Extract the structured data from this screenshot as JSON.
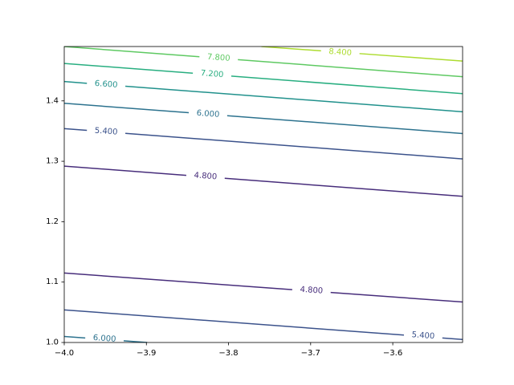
{
  "chart_data": {
    "type": "contour",
    "title": "",
    "xlabel": "",
    "ylabel": "",
    "xlim": [
      -4.0,
      -3.515
    ],
    "ylim": [
      1.0,
      1.49
    ],
    "x_ticks": [
      {
        "value": -4.0,
        "label": "−4.0"
      },
      {
        "value": -3.9,
        "label": "−3.9"
      },
      {
        "value": -3.8,
        "label": "−3.8"
      },
      {
        "value": -3.7,
        "label": "−3.7"
      },
      {
        "value": -3.6,
        "label": "−3.6"
      }
    ],
    "y_ticks": [
      {
        "value": 1.0,
        "label": "1.0"
      },
      {
        "value": 1.1,
        "label": "1.1"
      },
      {
        "value": 1.2,
        "label": "1.2"
      },
      {
        "value": 1.3,
        "label": "1.3"
      },
      {
        "value": 1.4,
        "label": "1.4"
      }
    ],
    "grid": false,
    "levels": [
      {
        "level": 4.8,
        "label": "4.800",
        "color": "#472d7b",
        "lines": [
          {
            "points": [
              [
                -4.0,
                1.292
              ],
              [
                -3.515,
                1.242
              ]
            ],
            "label_at": [
              -3.828,
              1.275
            ]
          },
          {
            "points": [
              [
                -4.0,
                1.115
              ],
              [
                -3.515,
                1.067
              ]
            ],
            "label_at": [
              -3.699,
              1.086
            ]
          }
        ]
      },
      {
        "level": 5.4,
        "label": "5.400",
        "color": "#3b528b",
        "lines": [
          {
            "points": [
              [
                -4.0,
                1.354
              ],
              [
                -3.515,
                1.304
              ]
            ],
            "label_at": [
              -3.949,
              1.349
            ]
          },
          {
            "points": [
              [
                -4.0,
                1.054
              ],
              [
                -3.515,
                1.005
              ]
            ],
            "label_at": [
              -3.563,
              1.011
            ]
          }
        ]
      },
      {
        "level": 6.0,
        "label": "6.000",
        "color": "#2c728e",
        "lines": [
          {
            "points": [
              [
                -4.0,
                1.396
              ],
              [
                -3.515,
                1.346
              ]
            ],
            "label_at": [
              -3.825,
              1.378
            ]
          },
          {
            "points": [
              [
                -4.0,
                1.01
              ],
              [
                -3.899,
                1.0
              ]
            ],
            "label_at": [
              -3.951,
              1.006
            ]
          }
        ]
      },
      {
        "level": 6.6,
        "label": "6.600",
        "color": "#21918c",
        "lines": [
          {
            "points": [
              [
                -4.0,
                1.432
              ],
              [
                -3.515,
                1.382
              ]
            ],
            "label_at": [
              -3.949,
              1.427
            ]
          }
        ]
      },
      {
        "level": 7.2,
        "label": "7.200",
        "color": "#28ae80",
        "lines": [
          {
            "points": [
              [
                -4.0,
                1.462
              ],
              [
                -3.515,
                1.412
              ]
            ],
            "label_at": [
              -3.82,
              1.444
            ]
          }
        ]
      },
      {
        "level": 7.8,
        "label": "7.800",
        "color": "#5ec962",
        "lines": [
          {
            "points": [
              [
                -4.0,
                1.49
              ],
              [
                -3.515,
                1.44
              ]
            ],
            "label_at": [
              -3.812,
              1.471
            ]
          }
        ]
      },
      {
        "level": 8.4,
        "label": "8.400",
        "color": "#addc30",
        "lines": [
          {
            "points": [
              [
                -3.76,
                1.49
              ],
              [
                -3.515,
                1.466
              ]
            ],
            "label_at": [
              -3.664,
              1.48
            ]
          }
        ]
      }
    ]
  }
}
